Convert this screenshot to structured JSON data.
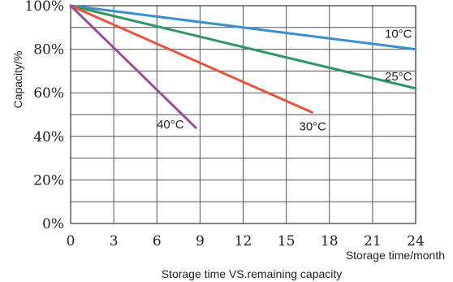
{
  "chart_data": {
    "type": "line",
    "title": "",
    "caption": "Storage time VS.remaining capacity",
    "xlabel": "Storage time/month",
    "ylabel": "Capacity/%",
    "xlim": [
      0,
      24
    ],
    "ylim": [
      0,
      100
    ],
    "grid": true,
    "x_ticks": [
      "0",
      "3",
      "6",
      "9",
      "12",
      "15",
      "18",
      "21",
      "24"
    ],
    "y_ticks": [
      "0%",
      "20%",
      "40%",
      "60%",
      "80%",
      "100%"
    ],
    "series": [
      {
        "name": "10°C",
        "color": "#3a8fd0",
        "x": [
          0,
          24
        ],
        "y": [
          100,
          80
        ]
      },
      {
        "name": "25°C",
        "color": "#2e9660",
        "x": [
          0,
          24
        ],
        "y": [
          100,
          62
        ]
      },
      {
        "name": "30°C",
        "color": "#e8553a",
        "x": [
          0,
          16.8
        ],
        "y": [
          100,
          51
        ]
      },
      {
        "name": "40°C",
        "color": "#9b4d96",
        "x": [
          0,
          8.7
        ],
        "y": [
          100,
          44
        ]
      }
    ]
  }
}
